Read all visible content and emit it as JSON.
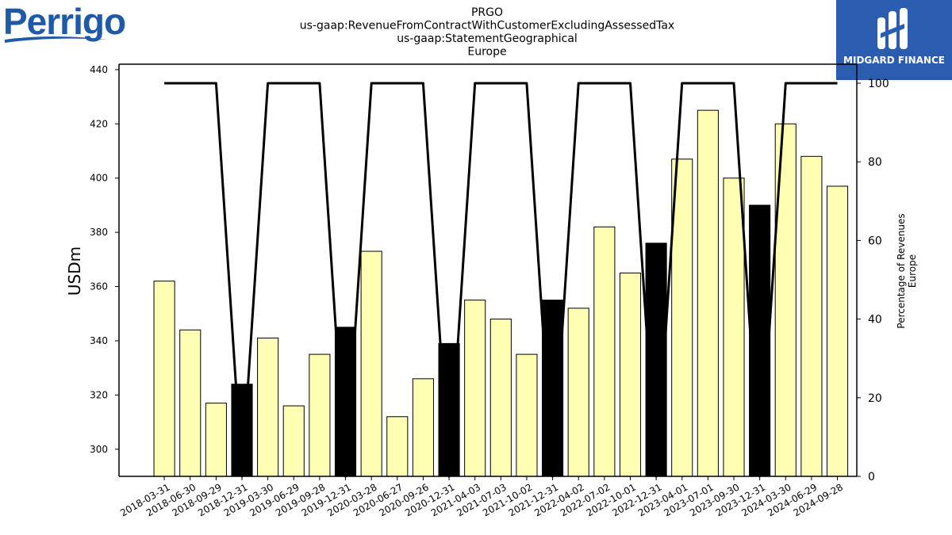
{
  "logos": {
    "left_text": "Perrigo",
    "right_text": "MIDGARD FINANCE"
  },
  "chart_data": {
    "type": "bar",
    "title_lines": [
      "PRGO",
      "us-gaap:RevenueFromContractWithCustomerExcludingAssessedTax",
      "us-gaap:StatementGeographical",
      "Europe"
    ],
    "ylabel": "USDm",
    "y2label_lines": [
      "Percentage of Revenues",
      "Europe"
    ],
    "ylim": [
      290,
      442
    ],
    "y_ticks": [
      300,
      320,
      340,
      360,
      380,
      400,
      420,
      440
    ],
    "y2lim": [
      0,
      100
    ],
    "y2_ticks": [
      0,
      20,
      40,
      60,
      80,
      100
    ],
    "categories": [
      "2018-03-31",
      "2018-06-30",
      "2018-09-29",
      "2018-12-31",
      "2019-03-30",
      "2019-06-29",
      "2019-09-28",
      "2019-12-31",
      "2020-03-28",
      "2020-06-27",
      "2020-09-26",
      "2020-12-31",
      "2021-04-03",
      "2021-07-03",
      "2021-10-02",
      "2021-12-31",
      "2022-04-02",
      "2022-07-02",
      "2022-10-01",
      "2022-12-31",
      "2023-04-01",
      "2023-07-01",
      "2023-09-30",
      "2023-12-31",
      "2024-03-30",
      "2024-06-29",
      "2024-09-28"
    ],
    "values": [
      362,
      344,
      317,
      324,
      341,
      316,
      335,
      345,
      373,
      312,
      326,
      339,
      355,
      348,
      335,
      355,
      352,
      382,
      365,
      376,
      407,
      425,
      400,
      390,
      420,
      408,
      397
    ],
    "highlight": [
      false,
      false,
      false,
      true,
      false,
      false,
      false,
      true,
      false,
      false,
      false,
      true,
      false,
      false,
      false,
      true,
      false,
      false,
      false,
      true,
      false,
      false,
      false,
      true,
      false,
      false,
      false
    ],
    "percentage": [
      100,
      100,
      100,
      0,
      100,
      100,
      100,
      0,
      100,
      100,
      100,
      0,
      100,
      100,
      100,
      0,
      100,
      100,
      100,
      0,
      100,
      100,
      100,
      0,
      100,
      100,
      100
    ],
    "colors": {
      "bar": "#ffffb3",
      "bar_highlight": "#000000",
      "line": "#000000"
    }
  }
}
